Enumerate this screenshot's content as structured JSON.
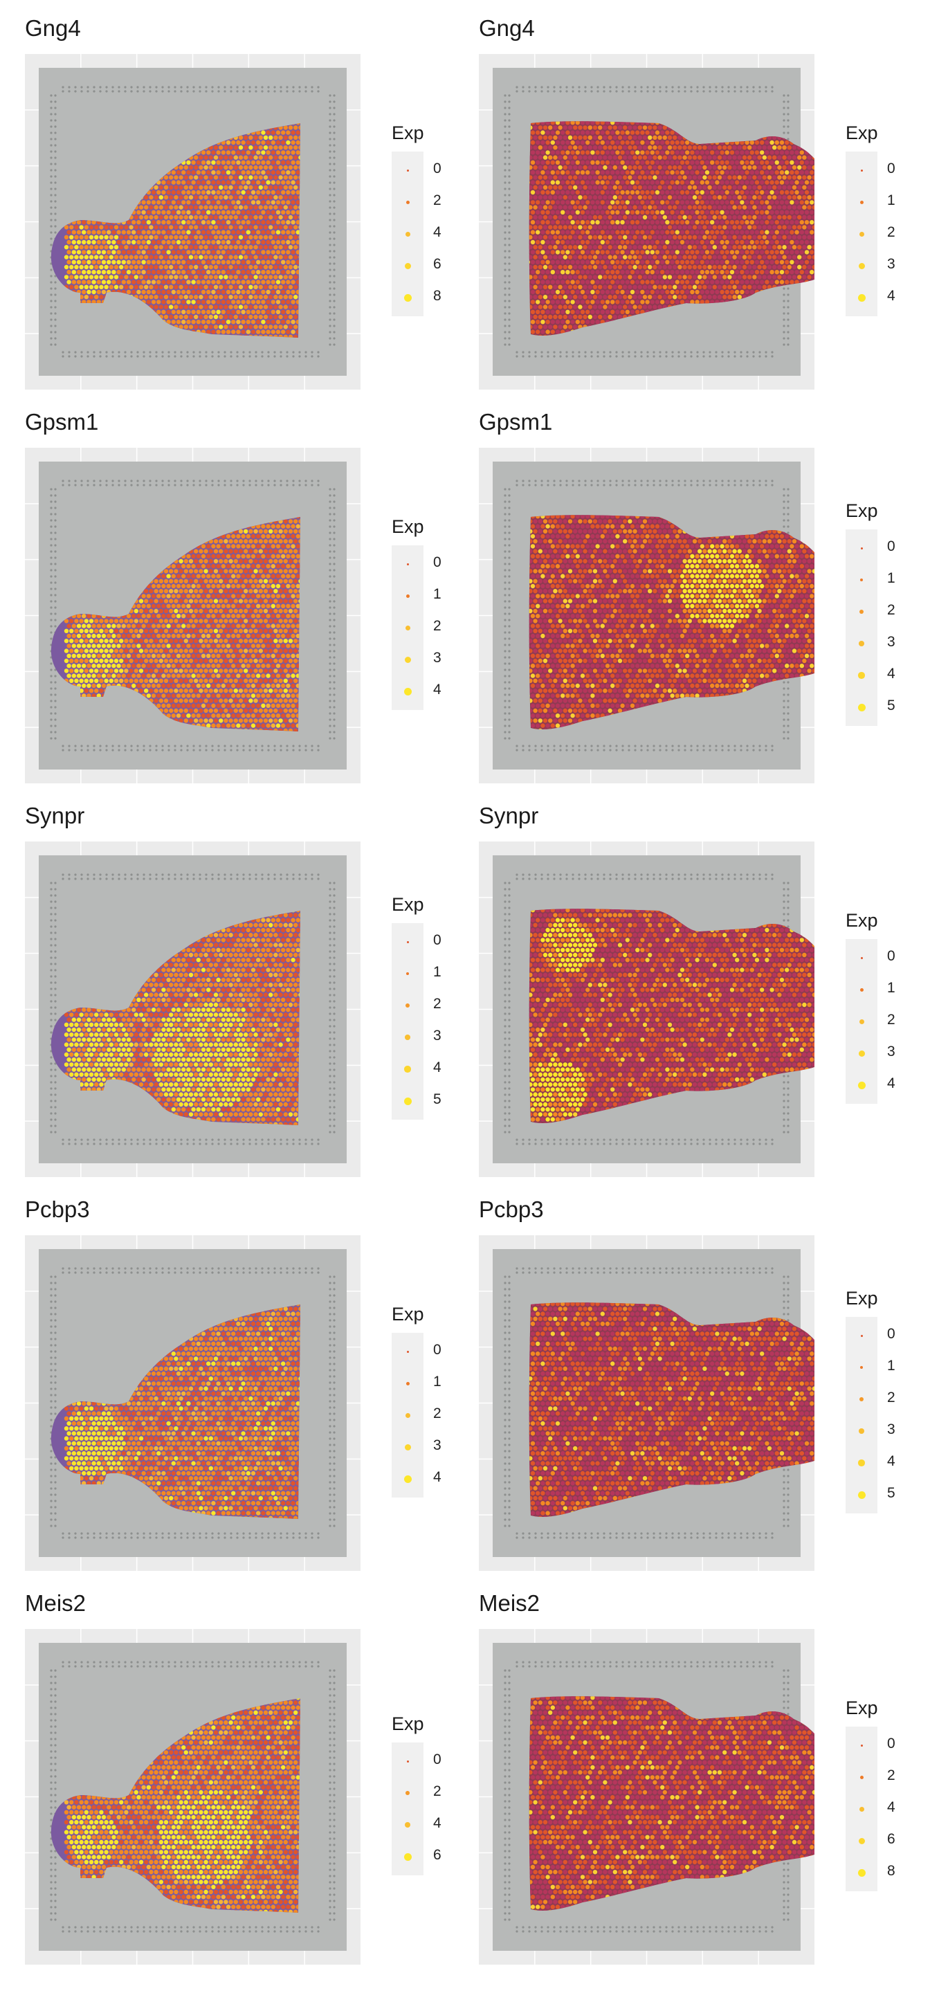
{
  "legend_title": "Exp",
  "colors": {
    "panel_background": "#ebebeb",
    "slide_background": "#b7b9b8",
    "tissue_purple": "#7b5aa0",
    "tissue_dark": "#8e3a52",
    "low_expression": "#e0552a",
    "mid_expression": "#f48a22",
    "high_expression": "#fde72a"
  },
  "panels": [
    {
      "id": "gng4-a",
      "title": "Gng4",
      "section": "sagittal-a",
      "legend": [
        "0",
        "2",
        "4",
        "6",
        "8"
      ]
    },
    {
      "id": "gng4-b",
      "title": "Gng4",
      "section": "sagittal-b",
      "legend": [
        "0",
        "1",
        "2",
        "3",
        "4"
      ]
    },
    {
      "id": "gpsm1-a",
      "title": "Gpsm1",
      "section": "sagittal-a",
      "legend": [
        "0",
        "1",
        "2",
        "3",
        "4"
      ]
    },
    {
      "id": "gpsm1-b",
      "title": "Gpsm1",
      "section": "sagittal-b",
      "legend": [
        "0",
        "1",
        "2",
        "3",
        "4",
        "5"
      ]
    },
    {
      "id": "synpr-a",
      "title": "Synpr",
      "section": "sagittal-a",
      "legend": [
        "0",
        "1",
        "2",
        "3",
        "4",
        "5"
      ]
    },
    {
      "id": "synpr-b",
      "title": "Synpr",
      "section": "sagittal-b",
      "legend": [
        "0",
        "1",
        "2",
        "3",
        "4"
      ]
    },
    {
      "id": "pcbp3-a",
      "title": "Pcbp3",
      "section": "sagittal-a",
      "legend": [
        "0",
        "1",
        "2",
        "3",
        "4"
      ]
    },
    {
      "id": "pcbp3-b",
      "title": "Pcbp3",
      "section": "sagittal-b",
      "legend": [
        "0",
        "1",
        "2",
        "3",
        "4",
        "5"
      ]
    },
    {
      "id": "meis2-a",
      "title": "Meis2",
      "section": "sagittal-a",
      "legend": [
        "0",
        "2",
        "4",
        "6"
      ]
    },
    {
      "id": "meis2-b",
      "title": "Meis2",
      "section": "sagittal-b",
      "legend": [
        "0",
        "2",
        "4",
        "6",
        "8"
      ]
    }
  ]
}
